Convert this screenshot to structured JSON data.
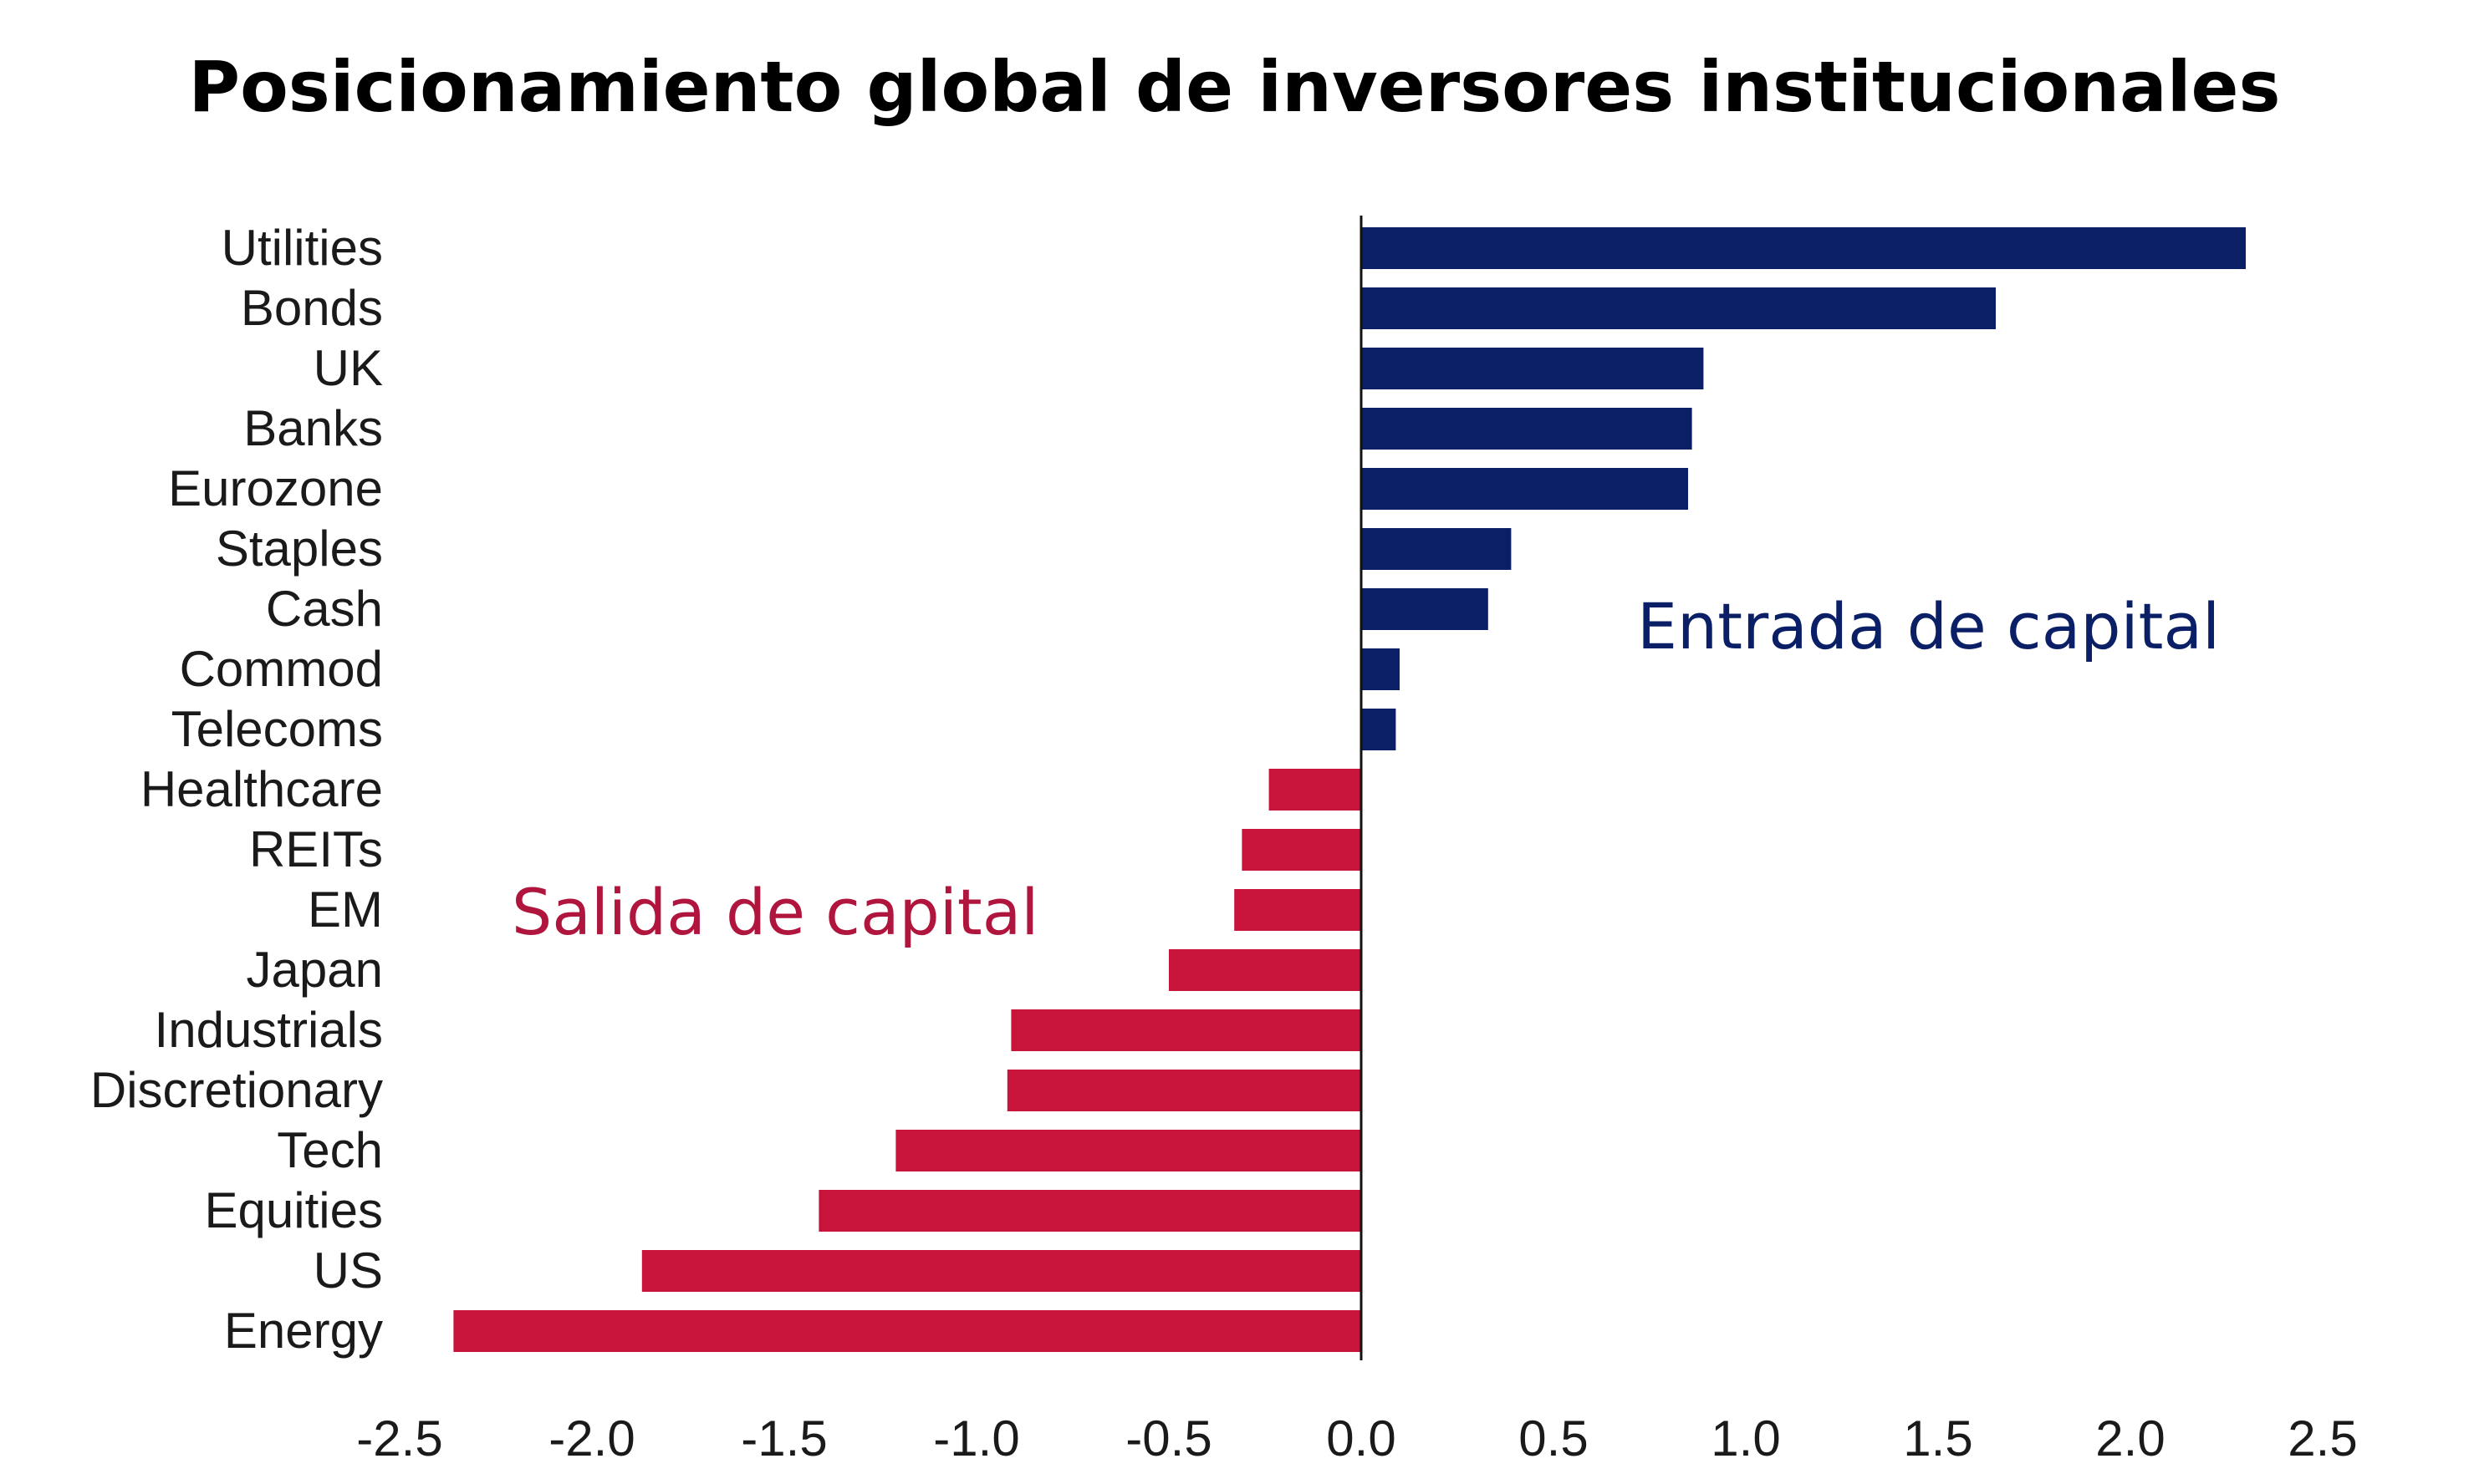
{
  "chart_data": {
    "type": "bar",
    "orientation": "horizontal",
    "title": "Posicionamiento global de inversores institucionales",
    "categories": [
      "Utilities",
      "Bonds",
      "UK",
      "Banks",
      "Eurozone",
      "Staples",
      "Cash",
      "Commod",
      "Telecoms",
      "Healthcare",
      "REITs",
      "EM",
      "Japan",
      "Industrials",
      "Discretionary",
      "Tech",
      "Equities",
      "US",
      "Energy"
    ],
    "values": [
      2.3,
      1.65,
      0.89,
      0.86,
      0.85,
      0.39,
      0.33,
      0.1,
      0.09,
      -0.24,
      -0.31,
      -0.33,
      -0.5,
      -0.91,
      -0.92,
      -1.21,
      -1.41,
      -1.87,
      -2.36
    ],
    "xlim": [
      -2.5,
      2.5
    ],
    "xticks": [
      "-2.5",
      "-2.0",
      "-1.5",
      "-1.0",
      "-0.5",
      "0.0",
      "0.5",
      "1.0",
      "1.5",
      "2.0",
      "2.5"
    ],
    "xtick_values": [
      -2.5,
      -2.0,
      -1.5,
      -1.0,
      -0.5,
      0.0,
      0.5,
      1.0,
      1.5,
      2.0,
      2.5
    ],
    "grid": false,
    "colors": {
      "positive": "#0a1f66",
      "negative": "#c8133a"
    },
    "annotations": [
      {
        "text": "Entrada de capital",
        "color": "#0a1f66"
      },
      {
        "text": "Salida de capital",
        "color": "#b0153d"
      }
    ]
  }
}
